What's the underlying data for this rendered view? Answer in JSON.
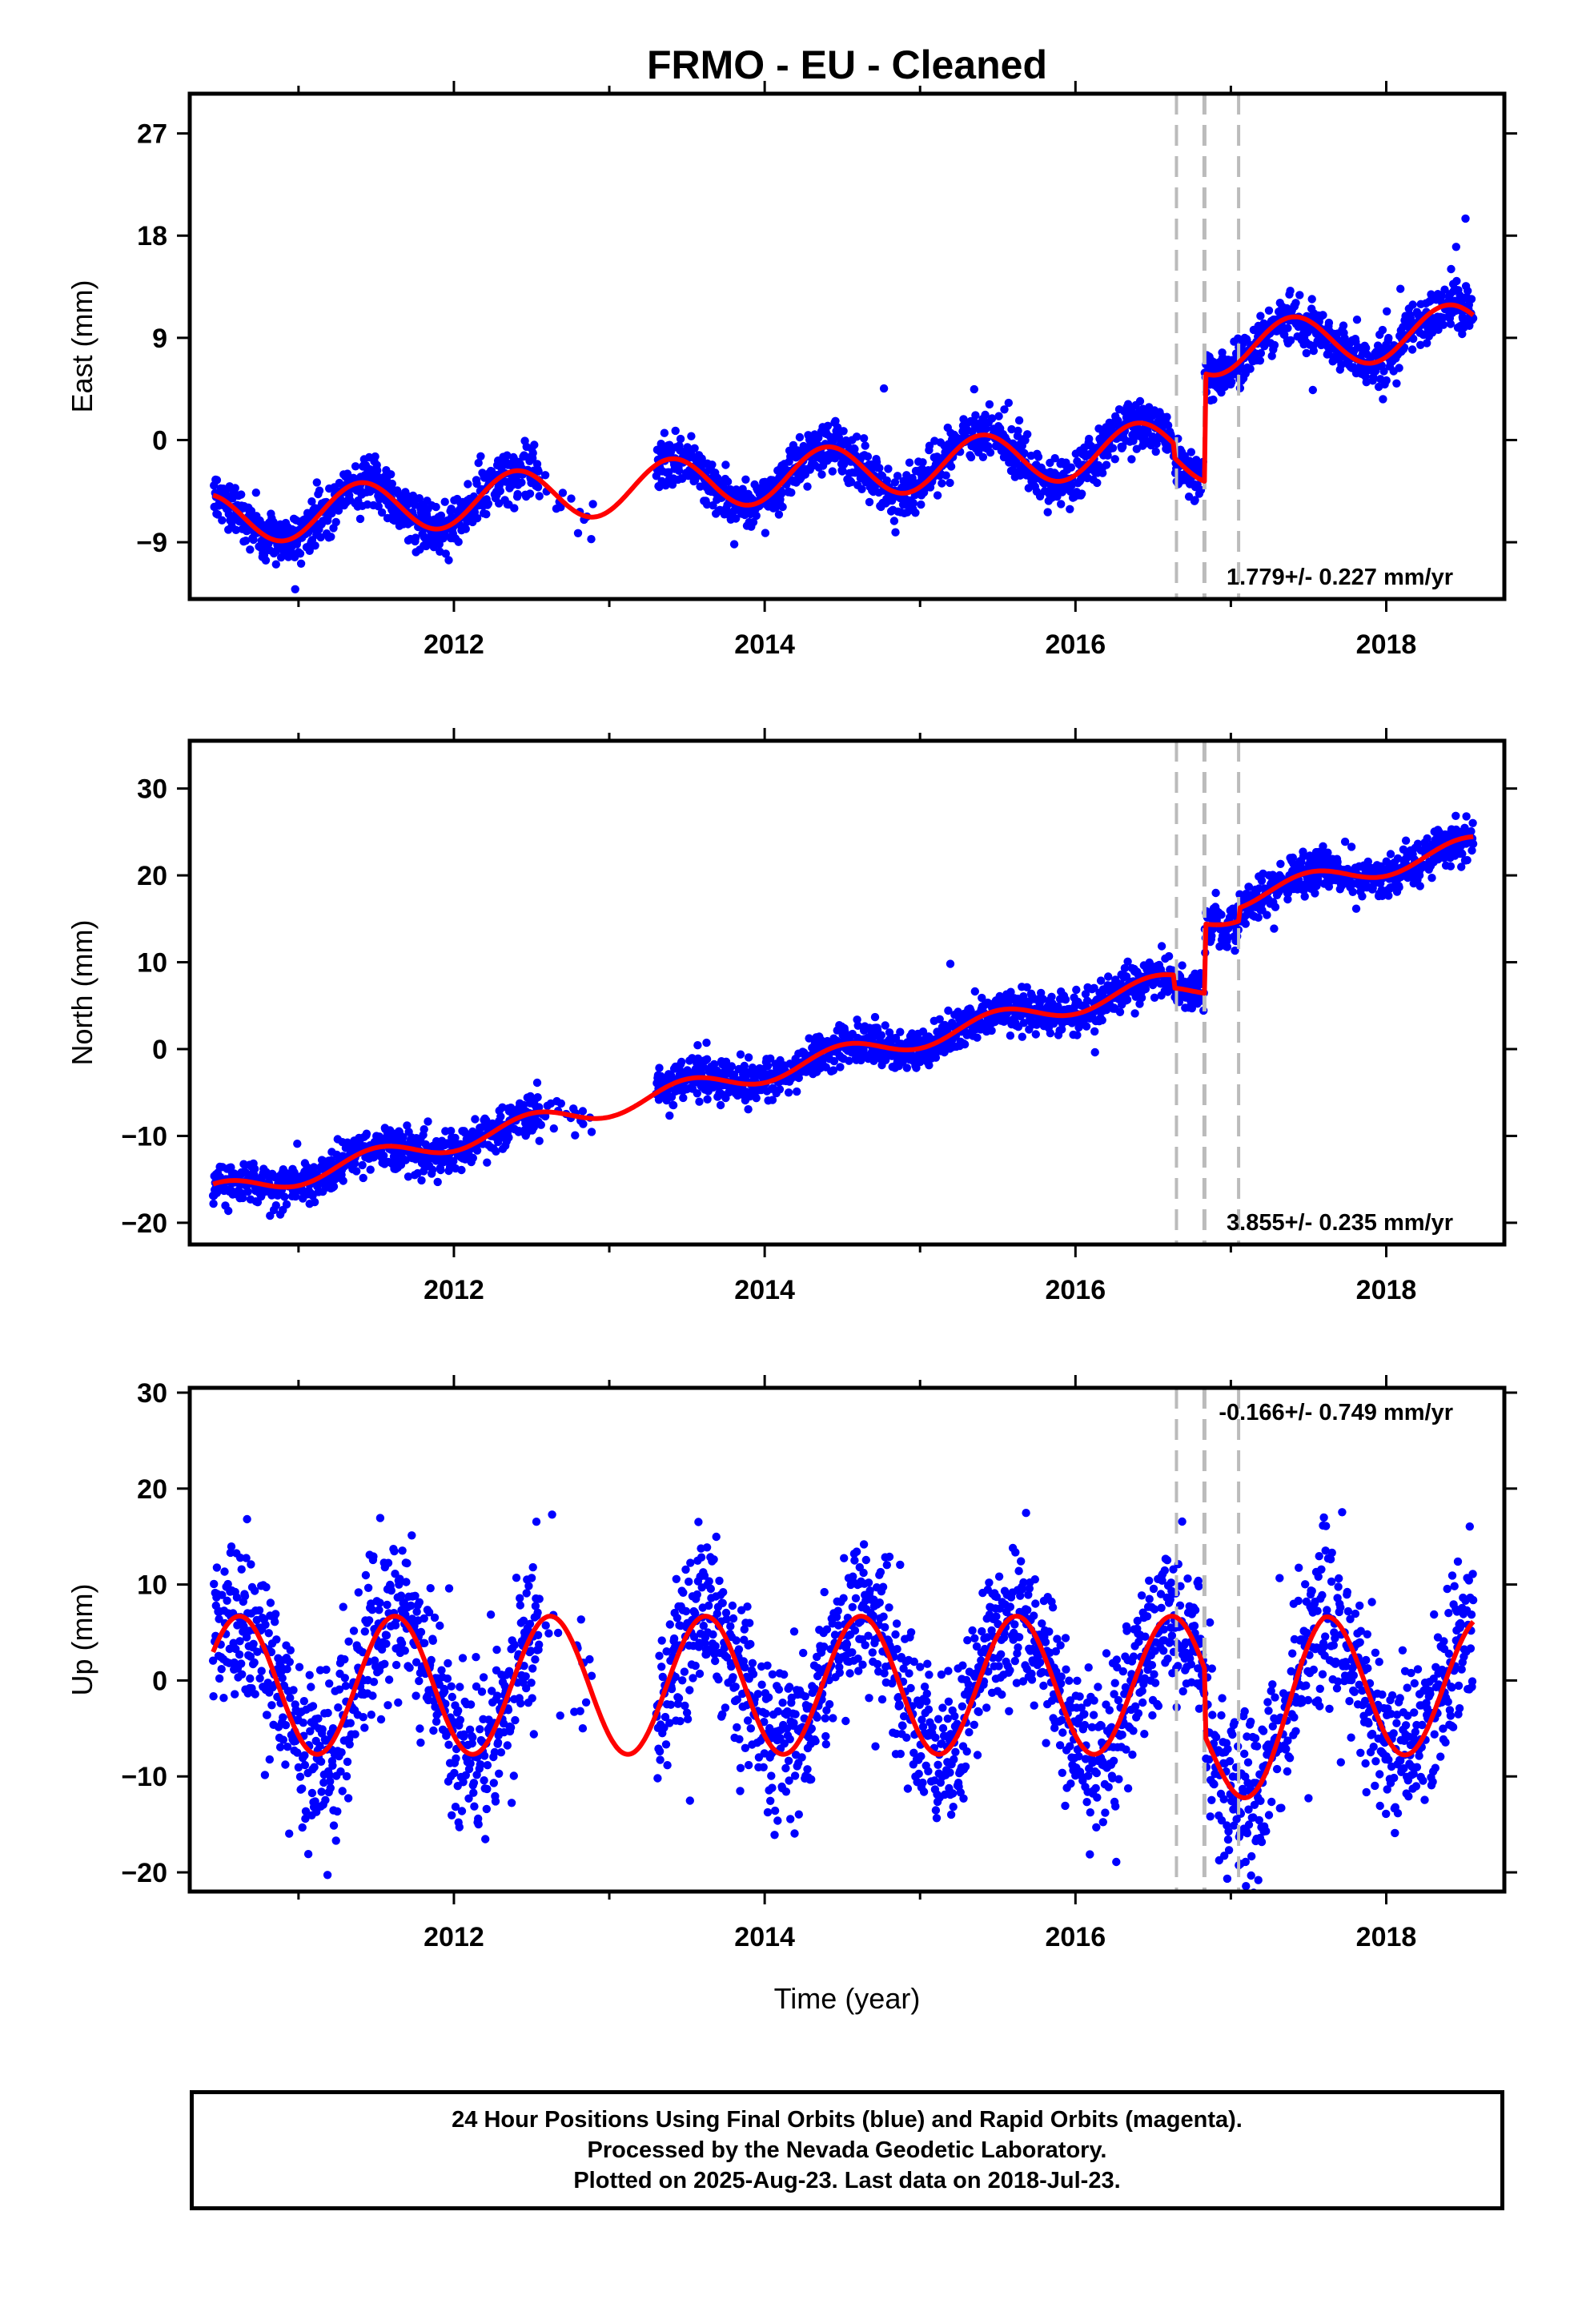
{
  "title": "FRMO  - EU - Cleaned",
  "xlabel": "Time (year)",
  "footer": {
    "line1": "24 Hour Positions Using Final Orbits (blue) and Rapid Orbits (magenta).",
    "line2": "Processed by the Nevada Geodetic Laboratory.",
    "line3": "Plotted on 2025-Aug-23. Last data on 2018-Jul-23."
  },
  "colors": {
    "data": "#0000ff",
    "model": "#ff0000",
    "event_line": "#bbbbbb"
  },
  "chart_data": [
    {
      "type": "scatter",
      "panel": "East",
      "ylabel": "East (mm)",
      "xlim": [
        2010.3,
        2018.76
      ],
      "ylim": [
        -14,
        30.5
      ],
      "yticks": [
        -9,
        0,
        9,
        18,
        27
      ],
      "xticks": [
        2012,
        2014,
        2016,
        2018
      ],
      "rate_text": "1.779+/- 0.227 mm/yr",
      "events": [
        2016.65,
        2016.83,
        2017.05
      ],
      "data_range": [
        2010.45,
        2018.56
      ],
      "gap": [
        2012.9,
        2013.3
      ],
      "model": {
        "base": -7.0,
        "slope": 1.05,
        "ref": 2010.5,
        "amp": 2.3,
        "phase_center": 2011.4,
        "steps": [
          {
            "x": 2016.63,
            "dy": -1.2
          },
          {
            "x": 2016.83,
            "dy": 9.5
          }
        ],
        "noise": 1.1
      },
      "series": [
        {
          "name": "Final Orbits (blue)",
          "color": "#0000ff"
        },
        {
          "name": "Rapid Orbits (magenta)",
          "color": "#ff00ff"
        }
      ]
    },
    {
      "type": "scatter",
      "panel": "North",
      "ylabel": "North (mm)",
      "xlim": [
        2010.3,
        2018.76
      ],
      "ylim": [
        -22.5,
        35.5
      ],
      "yticks": [
        -20,
        -10,
        0,
        10,
        20,
        30
      ],
      "xticks": [
        2012,
        2014,
        2016,
        2018
      ],
      "rate_text": "3.855+/- 0.235 mm/yr",
      "events": [
        2016.65,
        2016.83,
        2017.05
      ],
      "data_range": [
        2010.45,
        2018.56
      ],
      "gap": [
        2012.9,
        2013.3
      ],
      "model": {
        "base": -16.5,
        "slope": 3.95,
        "ref": 2010.5,
        "amp": 1.2,
        "phase_center": 2011.5,
        "steps": [
          {
            "x": 2016.63,
            "dy": -1.5
          },
          {
            "x": 2016.83,
            "dy": 8.0
          },
          {
            "x": 2017.05,
            "dy": 1.5
          }
        ],
        "noise": 1.2
      },
      "series": [
        {
          "name": "Final Orbits (blue)",
          "color": "#0000ff"
        },
        {
          "name": "Rapid Orbits (magenta)",
          "color": "#ff00ff"
        }
      ]
    },
    {
      "type": "scatter",
      "panel": "Up",
      "ylabel": "Up (mm)",
      "xlim": [
        2010.3,
        2018.76
      ],
      "ylim": [
        -22,
        30.5
      ],
      "yticks": [
        -20,
        -10,
        0,
        10,
        20,
        30
      ],
      "xticks": [
        2012,
        2014,
        2016,
        2018
      ],
      "rate_text": "-0.166+/- 0.749 mm/yr",
      "events": [
        2016.65,
        2016.83,
        2017.05
      ],
      "data_range": [
        2010.45,
        2018.56
      ],
      "gap": [
        2012.9,
        2013.3
      ],
      "model": {
        "base": -0.5,
        "slope": 0.0,
        "ref": 2010.5,
        "amp": 7.2,
        "phase_center": 2010.62,
        "steps": [
          {
            "x": 2016.83,
            "dy": -7.0
          }
        ],
        "post_trend": {
          "start": 2016.83,
          "rate": 9.0,
          "end": 2017.6
        },
        "noise": 4.2
      },
      "series": [
        {
          "name": "Final Orbits (blue)",
          "color": "#0000ff"
        },
        {
          "name": "Rapid Orbits (magenta)",
          "color": "#ff00ff"
        }
      ]
    }
  ]
}
